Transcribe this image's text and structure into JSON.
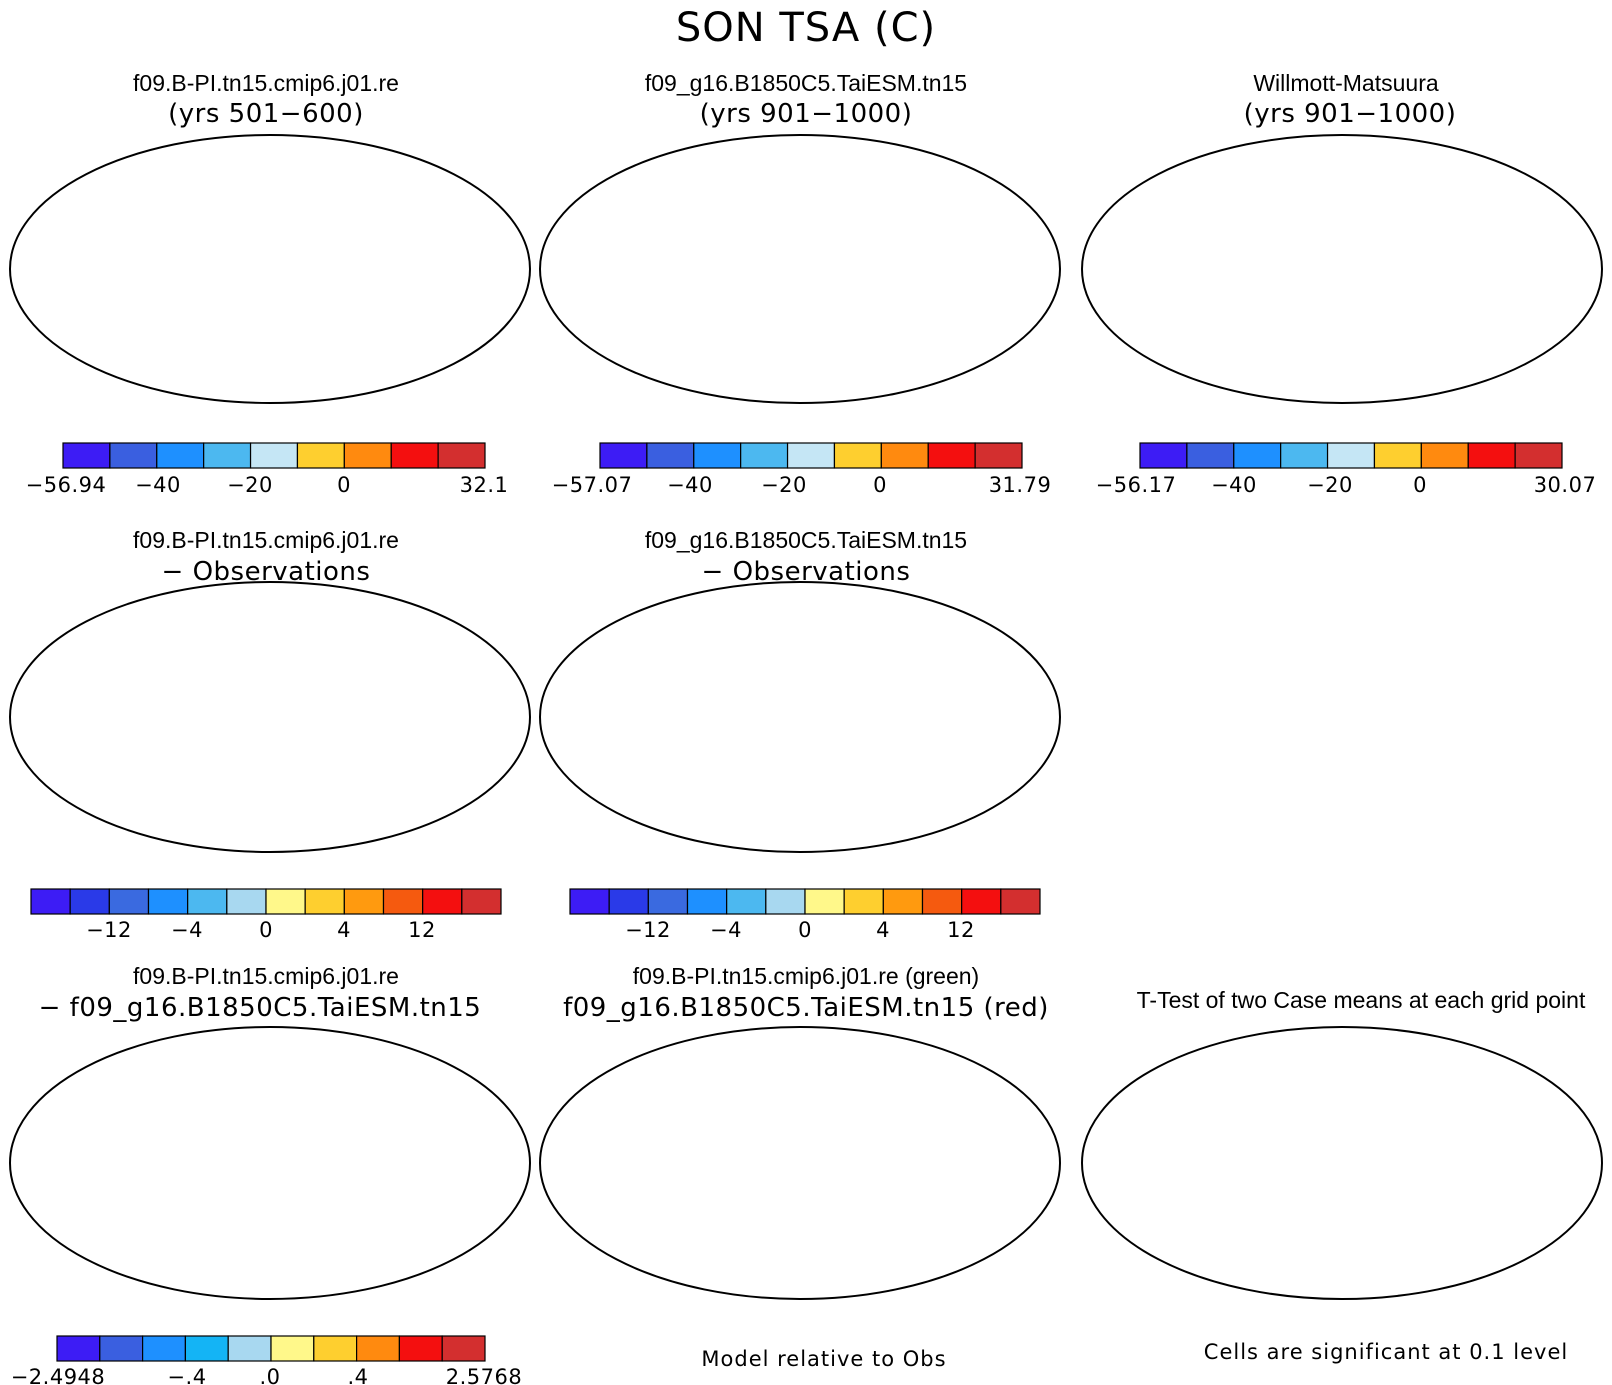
{
  "title": "SON TSA (C)",
  "palettes": {
    "abs": [
      "#3d1cf5",
      "#3a5fe0",
      "#1e90ff",
      "#4cb8f0",
      "#c5e6f5",
      "#fecf2f",
      "#ff8a0f",
      "#f40f0f",
      "#d32f2f"
    ],
    "diff": [
      "#3d1cf5",
      "#2a3ae8",
      "#3a6ae0",
      "#1e90ff",
      "#4cb8f0",
      "#a8d8f0",
      "#fff88a",
      "#fecf2f",
      "#ff9a0f",
      "#f55a0f",
      "#f40f0f",
      "#d32f2f"
    ],
    "casediff": [
      "#3d1cf5",
      "#3a5fe0",
      "#1e90ff",
      "#14b4f5",
      "#a8d8f0",
      "#fff88a",
      "#fecf2f",
      "#ff8a0f",
      "#f40f0f",
      "#d32f2f"
    ],
    "ocean": "#ffffff",
    "green": "#22ee22",
    "red": "#ff1010"
  },
  "chart_data": [
    {
      "type": "heatmap",
      "panel": "case1",
      "title": "f09.B-PI.tn15.cmip6.j01.re",
      "subtitle": "(yrs 501−600)",
      "colorbar": {
        "min": -56.94,
        "max": 32.1,
        "tick_labels": [
          "−56.94",
          "−40",
          "−20",
          "0",
          "32.1"
        ]
      }
    },
    {
      "type": "heatmap",
      "panel": "case2",
      "title": "f09_g16.B1850C5.TaiESM.tn15",
      "subtitle": "(yrs 901−1000)",
      "colorbar": {
        "min": -57.07,
        "max": 31.79,
        "tick_labels": [
          "−57.07",
          "−40",
          "−20",
          "0",
          "31.79"
        ]
      }
    },
    {
      "type": "heatmap",
      "panel": "obs",
      "title": "Willmott-Matsuura",
      "subtitle": "(yrs 901−1000)",
      "colorbar": {
        "min": -56.17,
        "max": 30.07,
        "tick_labels": [
          "−56.17",
          "−40",
          "−20",
          "0",
          "30.07"
        ]
      }
    },
    {
      "type": "heatmap",
      "panel": "case1-obs",
      "title": "f09.B-PI.tn15.cmip6.j01.re",
      "subtitle": "− Observations",
      "colorbar": {
        "tick_labels": [
          "−12",
          "−4",
          "0",
          "4",
          "12"
        ]
      }
    },
    {
      "type": "heatmap",
      "panel": "case2-obs",
      "title": "f09_g16.B1850C5.TaiESM.tn15",
      "subtitle": "− Observations",
      "colorbar": {
        "tick_labels": [
          "−12",
          "−4",
          "0",
          "4",
          "12"
        ]
      }
    },
    {
      "type": "heatmap",
      "panel": "case1-case2",
      "title": "f09.B-PI.tn15.cmip6.j01.re",
      "subtitle": "− f09_g16.B1850C5.TaiESM.tn15",
      "colorbar": {
        "min": -2.4948,
        "max": 2.5768,
        "tick_labels": [
          "−2.4948",
          "−.4",
          ".0",
          ".4",
          "2.5768"
        ]
      }
    },
    {
      "type": "heatmap",
      "panel": "model-relative",
      "title": "f09.B-PI.tn15.cmip6.j01.re (green)",
      "subtitle": "f09_g16.B1850C5.TaiESM.tn15 (red)",
      "note": "Model relative to Obs"
    },
    {
      "type": "heatmap",
      "panel": "ttest",
      "title": "T-Test of two Case means at each grid point",
      "note": "Cells are significant at 0.1 level"
    }
  ]
}
